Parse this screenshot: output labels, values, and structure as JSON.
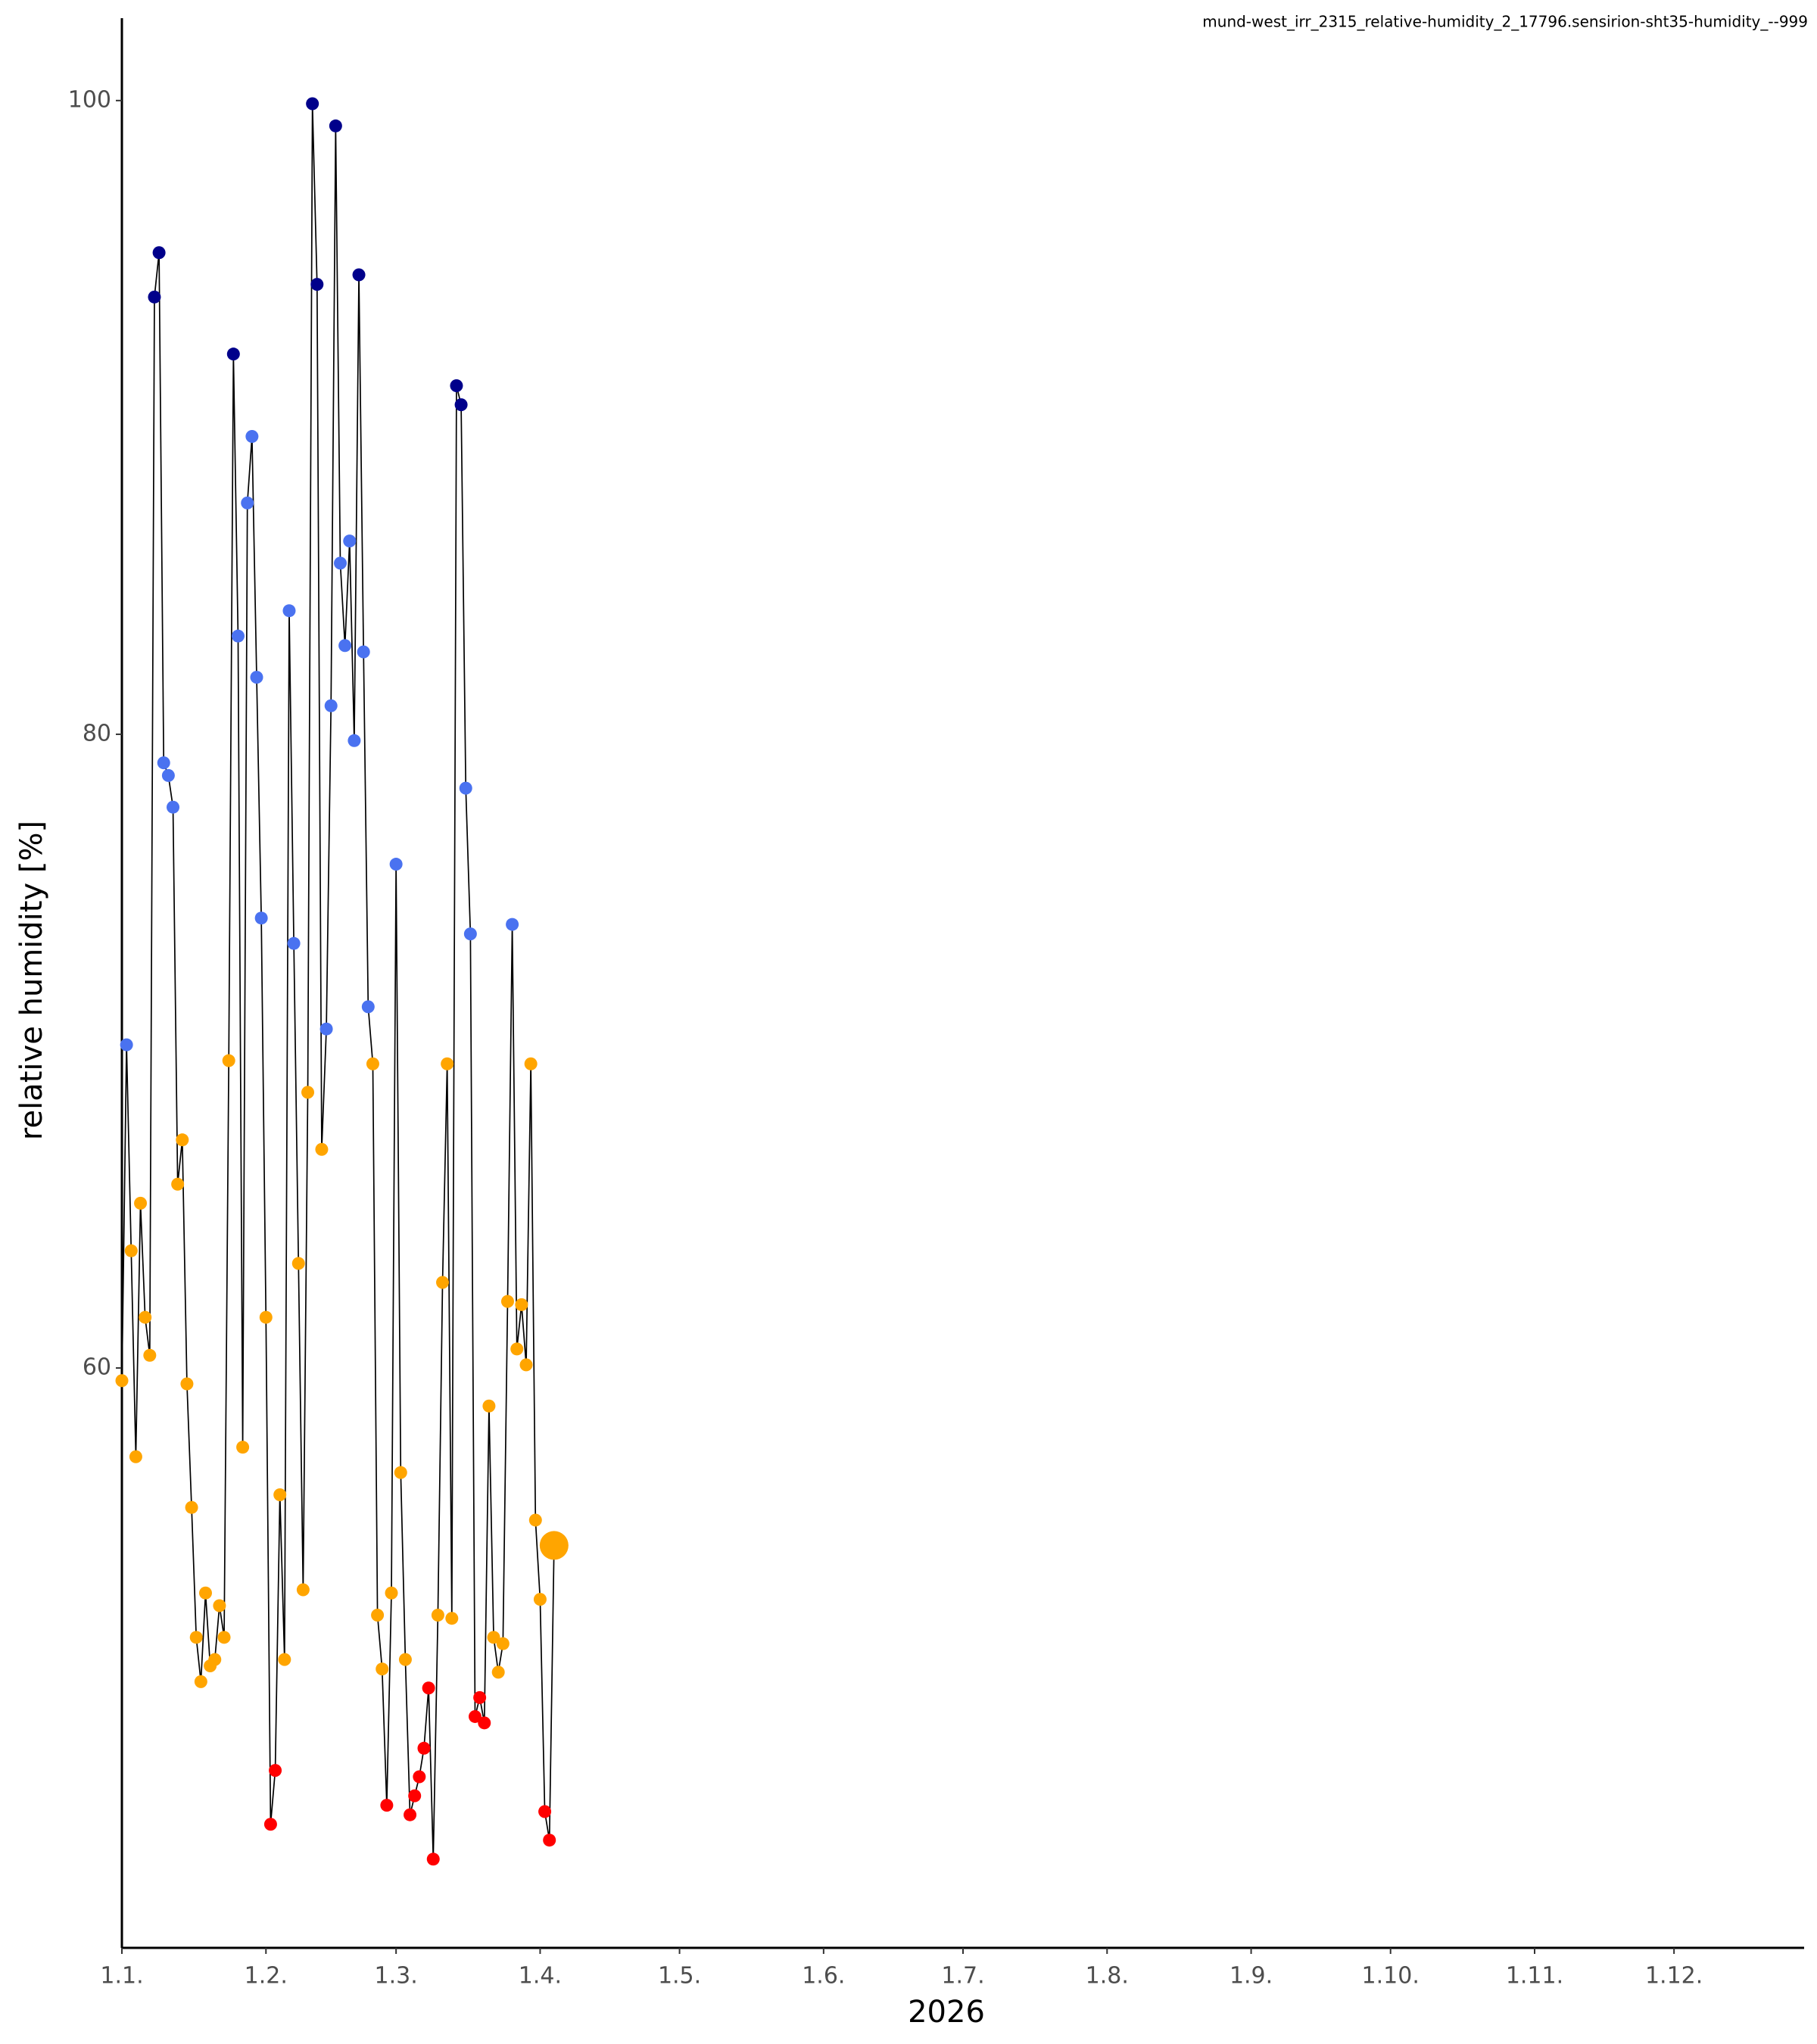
{
  "chart_data": {
    "type": "line",
    "title": "mund-west_irr_2315_relative-humidity_2_17796.sensirion-sht35-humidity_--999",
    "xlabel": "2026",
    "ylabel": "relative humidity [%]",
    "x": [
      "2026-01-01",
      "2026-01-02",
      "2026-01-03",
      "2026-01-04",
      "2026-01-05",
      "2026-01-06",
      "2026-01-07",
      "2026-01-08",
      "2026-01-09",
      "2026-01-10",
      "2026-01-11",
      "2026-01-12",
      "2026-01-13",
      "2026-01-14",
      "2026-01-15",
      "2026-01-16",
      "2026-01-17",
      "2026-01-18",
      "2026-01-19",
      "2026-01-20",
      "2026-01-21",
      "2026-01-22",
      "2026-01-23",
      "2026-01-24",
      "2026-01-25",
      "2026-01-26",
      "2026-01-27",
      "2026-01-28",
      "2026-01-29",
      "2026-01-30",
      "2026-01-31",
      "2026-02-01",
      "2026-02-02",
      "2026-02-03",
      "2026-02-04",
      "2026-02-05",
      "2026-02-06",
      "2026-02-07",
      "2026-02-08",
      "2026-02-09",
      "2026-02-10",
      "2026-02-11",
      "2026-02-12",
      "2026-02-13",
      "2026-02-14",
      "2026-02-15",
      "2026-02-16",
      "2026-02-17",
      "2026-02-18",
      "2026-02-19",
      "2026-02-20",
      "2026-02-21",
      "2026-02-22",
      "2026-02-23",
      "2026-02-24",
      "2026-02-25",
      "2026-02-26",
      "2026-02-27",
      "2026-02-28",
      "2026-03-01",
      "2026-03-02",
      "2026-03-03",
      "2026-03-04",
      "2026-03-05",
      "2026-03-06",
      "2026-03-07",
      "2026-03-08",
      "2026-03-09",
      "2026-03-10",
      "2026-03-11",
      "2026-03-12",
      "2026-03-13",
      "2026-03-14",
      "2026-03-15",
      "2026-03-16",
      "2026-03-17",
      "2026-03-18",
      "2026-03-19",
      "2026-03-20",
      "2026-03-21",
      "2026-03-22",
      "2026-03-23",
      "2026-03-24",
      "2026-03-25",
      "2026-03-26",
      "2026-03-27",
      "2026-03-28",
      "2026-03-29",
      "2026-03-30",
      "2026-03-31",
      "2026-04-01",
      "2026-04-02",
      "2026-04-03",
      "2026-04-04"
    ],
    "series": [
      {
        "color": "#000000",
        "values": [
          59.6,
          70.2,
          63.7,
          57.2,
          65.2,
          61.6,
          60.4,
          93.8,
          95.2,
          79.1,
          78.7,
          77.7,
          65.8,
          67.2,
          59.5,
          55.6,
          51.5,
          50.1,
          52.9,
          50.6,
          50.8,
          52.5,
          51.5,
          69.7,
          92.0,
          83.1,
          57.5,
          87.3,
          89.4,
          81.8,
          74.2,
          61.6,
          45.6,
          47.3,
          56.0,
          50.8,
          83.9,
          73.4,
          63.3,
          53.0,
          68.7,
          99.9,
          94.2,
          66.9,
          70.7,
          80.9,
          99.2,
          85.4,
          82.8,
          86.1,
          79.8,
          94.5,
          82.6,
          71.4,
          69.6,
          52.2,
          50.5,
          46.2,
          52.9,
          75.9,
          56.7,
          50.8,
          45.9,
          46.5,
          47.1,
          48.0,
          49.9,
          44.5,
          52.2,
          62.7,
          69.6,
          52.1,
          91.0,
          90.4,
          78.3,
          73.7,
          49.0,
          49.6,
          48.8,
          58.8,
          51.5,
          50.4,
          51.3,
          62.1,
          74.0,
          60.6,
          62.0,
          60.1,
          69.6,
          55.2,
          52.7,
          46.0,
          45.1,
          54.4
        ],
        "point_colors": [
          "#ffa500",
          "#4a72f0",
          "#ffa500",
          "#ffa500",
          "#ffa500",
          "#ffa500",
          "#ffa500",
          "#00008b",
          "#00008b",
          "#4a72f0",
          "#4a72f0",
          "#4a72f0",
          "#ffa500",
          "#ffa500",
          "#ffa500",
          "#ffa500",
          "#ffa500",
          "#ffa500",
          "#ffa500",
          "#ffa500",
          "#ffa500",
          "#ffa500",
          "#ffa500",
          "#ffa500",
          "#00008b",
          "#4a72f0",
          "#ffa500",
          "#4a72f0",
          "#4a72f0",
          "#4a72f0",
          "#4a72f0",
          "#ffa500",
          "#ff0000",
          "#ff0000",
          "#ffa500",
          "#ffa500",
          "#4a72f0",
          "#4a72f0",
          "#ffa500",
          "#ffa500",
          "#ffa500",
          "#00008b",
          "#00008b",
          "#ffa500",
          "#4a72f0",
          "#4a72f0",
          "#00008b",
          "#4a72f0",
          "#4a72f0",
          "#4a72f0",
          "#4a72f0",
          "#00008b",
          "#4a72f0",
          "#4a72f0",
          "#ffa500",
          "#ffa500",
          "#ffa500",
          "#ff0000",
          "#ffa500",
          "#4a72f0",
          "#ffa500",
          "#ffa500",
          "#ff0000",
          "#ff0000",
          "#ff0000",
          "#ff0000",
          "#ff0000",
          "#ff0000",
          "#ffa500",
          "#ffa500",
          "#ffa500",
          "#ffa500",
          "#00008b",
          "#00008b",
          "#4a72f0",
          "#4a72f0",
          "#ff0000",
          "#ff0000",
          "#ff0000",
          "#ffa500",
          "#ffa500",
          "#ffa500",
          "#ffa500",
          "#ffa500",
          "#4a72f0",
          "#ffa500",
          "#ffa500",
          "#ffa500",
          "#ffa500",
          "#ffa500",
          "#ffa500",
          "#ff0000",
          "#ff0000",
          "#ffa500"
        ]
      }
    ],
    "highlight_last": true,
    "xlim": [
      "2026-01-01",
      "2026-12-29"
    ],
    "xticks": [
      {
        "value": "2026-01-01",
        "label": "1.1."
      },
      {
        "value": "2026-02-01",
        "label": "1.2."
      },
      {
        "value": "2026-03-01",
        "label": "1.3."
      },
      {
        "value": "2026-04-01",
        "label": "1.4."
      },
      {
        "value": "2026-05-01",
        "label": "1.5."
      },
      {
        "value": "2026-06-01",
        "label": "1.6."
      },
      {
        "value": "2026-07-01",
        "label": "1.7."
      },
      {
        "value": "2026-08-01",
        "label": "1.8."
      },
      {
        "value": "2026-09-01",
        "label": "1.9."
      },
      {
        "value": "2026-10-01",
        "label": "1.10."
      },
      {
        "value": "2026-11-01",
        "label": "1.11."
      },
      {
        "value": "2026-12-01",
        "label": "1.12."
      }
    ],
    "ylim": [
      41.7,
      102.6
    ],
    "yticks": [
      60,
      80,
      100
    ],
    "grid": false
  }
}
